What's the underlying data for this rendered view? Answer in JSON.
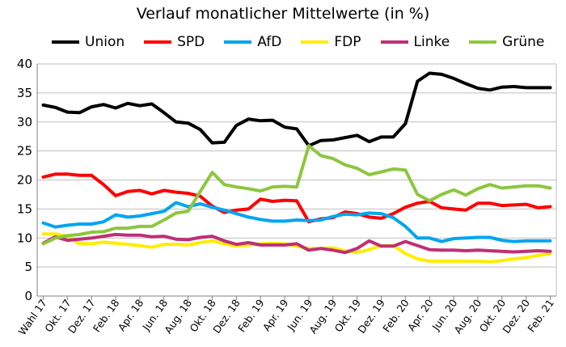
{
  "chart_data": {
    "type": "line",
    "title": "Verlauf monatlicher Mittelwerte (in %)",
    "ylim": [
      0,
      40
    ],
    "yticks": [
      0,
      5,
      10,
      15,
      20,
      25,
      30,
      35,
      40
    ],
    "grid": true,
    "legend_position": "top",
    "x_tick_labels": [
      "Wahl 17",
      "Okt. 17",
      "Dez. 17",
      "Feb. 18",
      "Apr. 18",
      "Jun. 18",
      "Aug. 18",
      "Okt. 18",
      "Dez. 18",
      "Feb. 19",
      "Apr. 19",
      "Jun. 19",
      "Aug. 19",
      "Okt. 19",
      "Dez. 19",
      "Feb. 20",
      "Apr. 20",
      "Jun. 20",
      "Aug. 20",
      "Okt. 20",
      "Dez. 20",
      "Feb. 21"
    ],
    "x": [
      "Sep. 17",
      "Okt. 17",
      "Nov. 17",
      "Dez. 17",
      "Jan. 18",
      "Feb. 18",
      "Mär. 18",
      "Apr. 18",
      "Mai 18",
      "Jun. 18",
      "Jul. 18",
      "Aug. 18",
      "Sep. 18",
      "Okt. 18",
      "Nov. 18",
      "Dez. 18",
      "Jan. 19",
      "Feb. 19",
      "Mär. 19",
      "Apr. 19",
      "Mai 19",
      "Jun. 19",
      "Jul. 19",
      "Aug. 19",
      "Sep. 19",
      "Okt. 19",
      "Nov. 19",
      "Dez. 19",
      "Jan. 20",
      "Feb. 20",
      "Mär. 20",
      "Apr. 20",
      "Mai 20",
      "Jun. 20",
      "Jul. 20",
      "Aug. 20",
      "Sep. 20",
      "Okt. 20",
      "Nov. 20",
      "Dez. 20",
      "Jan. 21",
      "Feb. 21",
      "Mär. 21"
    ],
    "series": [
      {
        "name": "Union",
        "color": "#000000",
        "values": [
          32.9,
          32.5,
          31.7,
          31.6,
          32.6,
          33.0,
          32.4,
          33.2,
          32.8,
          33.1,
          31.6,
          30.0,
          29.8,
          28.7,
          26.4,
          26.5,
          29.4,
          30.5,
          30.2,
          30.3,
          29.1,
          28.8,
          25.9,
          26.8,
          26.9,
          27.3,
          27.7,
          26.6,
          27.4,
          27.4,
          29.7,
          37.0,
          38.4,
          38.2,
          37.5,
          36.6,
          35.8,
          35.5,
          36.0,
          36.1,
          35.9,
          35.9,
          35.9
        ]
      },
      {
        "name": "SPD",
        "color": "#ff0000",
        "values": [
          20.5,
          21.0,
          21.0,
          20.8,
          20.8,
          19.2,
          17.3,
          18.0,
          18.2,
          17.6,
          18.2,
          17.9,
          17.7,
          17.2,
          15.5,
          14.4,
          14.8,
          15.0,
          16.7,
          16.3,
          16.5,
          16.4,
          12.8,
          13.3,
          13.5,
          14.5,
          14.2,
          13.6,
          13.4,
          14.2,
          15.3,
          16.0,
          16.3,
          15.2,
          15.0,
          14.8,
          16.0,
          16.0,
          15.6,
          15.7,
          15.8,
          15.2,
          15.4
        ]
      },
      {
        "name": "AfD",
        "color": "#00a6ed",
        "values": [
          12.6,
          11.9,
          12.2,
          12.4,
          12.4,
          12.8,
          14.0,
          13.6,
          13.8,
          14.2,
          14.6,
          16.1,
          15.4,
          15.9,
          15.3,
          14.8,
          14.2,
          13.6,
          13.2,
          12.9,
          12.9,
          13.1,
          13.0,
          13.1,
          13.7,
          14.1,
          14.0,
          14.3,
          14.2,
          13.5,
          12.0,
          10.0,
          10.0,
          9.4,
          9.9,
          10.0,
          10.1,
          10.1,
          9.6,
          9.4,
          9.5,
          9.5,
          9.5
        ]
      },
      {
        "name": "FDP",
        "color": "#ffed00",
        "values": [
          10.7,
          10.7,
          10.3,
          9.0,
          9.0,
          9.3,
          9.1,
          8.9,
          8.7,
          8.4,
          8.9,
          8.9,
          8.8,
          9.2,
          9.5,
          9.0,
          8.6,
          8.8,
          9.0,
          9.1,
          9.0,
          8.6,
          8.2,
          8.2,
          8.3,
          7.8,
          7.5,
          8.0,
          8.7,
          8.7,
          7.3,
          6.4,
          6.0,
          6.0,
          6.0,
          6.0,
          6.0,
          5.9,
          6.1,
          6.4,
          6.6,
          7.0,
          7.3
        ]
      },
      {
        "name": "Linke",
        "color": "#be3075",
        "values": [
          9.1,
          10.2,
          9.6,
          9.8,
          10.0,
          10.3,
          10.6,
          10.5,
          10.5,
          10.2,
          10.3,
          9.8,
          9.7,
          10.1,
          10.3,
          9.5,
          8.9,
          9.2,
          8.8,
          8.8,
          8.8,
          9.0,
          7.9,
          8.2,
          7.9,
          7.5,
          8.2,
          9.5,
          8.6,
          8.6,
          9.4,
          8.7,
          8.0,
          7.9,
          7.9,
          7.8,
          7.9,
          7.8,
          7.7,
          7.6,
          7.7,
          7.8,
          7.7
        ]
      },
      {
        "name": "Grüne",
        "color": "#8dc63f",
        "values": [
          9.0,
          10.0,
          10.4,
          10.6,
          11.0,
          11.1,
          11.7,
          11.7,
          12.0,
          12.0,
          13.1,
          14.3,
          14.6,
          18.0,
          21.3,
          19.2,
          18.8,
          18.5,
          18.1,
          18.8,
          18.9,
          18.8,
          25.9,
          24.2,
          23.7,
          22.6,
          22.0,
          20.9,
          21.4,
          21.9,
          21.7,
          17.5,
          16.4,
          17.5,
          18.3,
          17.4,
          18.5,
          19.2,
          18.6,
          18.8,
          19.0,
          19.0,
          18.6
        ]
      }
    ]
  }
}
